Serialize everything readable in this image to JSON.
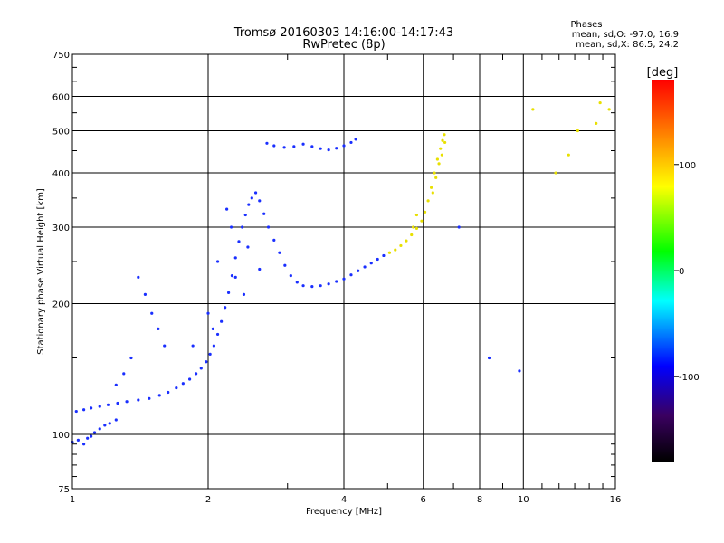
{
  "chart_data": {
    "type": "scatter",
    "title": "Tromsø 20160303 14:16:00-14:17:43",
    "subtitle": "RwPretec (8p)",
    "xlabel": "Frequency [MHz]",
    "ylabel": "Stationary phase Virtual Height [km]",
    "x_scale": "log",
    "y_scale": "log",
    "xlim": [
      1,
      16
    ],
    "ylim": [
      75,
      750
    ],
    "x_ticks": [
      1,
      2,
      4,
      6,
      8,
      10,
      16
    ],
    "x_tick_labels": [
      "1",
      "2",
      "4",
      "6",
      "8",
      "10",
      "16"
    ],
    "y_ticks": [
      75,
      100,
      200,
      300,
      400,
      500,
      600,
      750
    ],
    "y_tick_labels": [
      "75",
      "100",
      "200",
      "300",
      "400",
      "500",
      "600",
      "750"
    ],
    "grid": true,
    "stats": {
      "heading": "Phases",
      "line_o": "mean, sd,O: -97.0, 16.9",
      "line_x": "mean, sd,X:  86.5, 24.2"
    },
    "colorbar": {
      "label": "[deg]",
      "range": [
        -180,
        180
      ],
      "ticks": [
        100,
        0,
        -100
      ],
      "tick_labels": [
        "100",
        "0",
        "-100"
      ],
      "colormap": [
        "#000000",
        "#3a0060",
        "#0000ff",
        "#00ffff",
        "#00ff00",
        "#ffff00",
        "#ff0000"
      ]
    },
    "colors": {
      "o_mode": "#1a2fff",
      "x_mode": "#e8e000"
    },
    "series": [
      {
        "points": [
          [
            1.0,
            96
          ],
          [
            1.03,
            97
          ],
          [
            1.06,
            95
          ],
          [
            1.08,
            98
          ],
          [
            1.1,
            99
          ],
          [
            1.12,
            101
          ],
          [
            1.15,
            103
          ],
          [
            1.18,
            105
          ],
          [
            1.21,
            106
          ],
          [
            1.25,
            108
          ],
          [
            1.02,
            113
          ],
          [
            1.06,
            114
          ],
          [
            1.1,
            115
          ],
          [
            1.15,
            116
          ],
          [
            1.2,
            117
          ],
          [
            1.26,
            118
          ],
          [
            1.32,
            119
          ],
          [
            1.4,
            120
          ],
          [
            1.48,
            121
          ],
          [
            1.56,
            123
          ],
          [
            1.63,
            125
          ],
          [
            1.7,
            128
          ],
          [
            1.76,
            131
          ],
          [
            1.82,
            134
          ],
          [
            1.88,
            138
          ],
          [
            1.93,
            142
          ],
          [
            1.98,
            147
          ],
          [
            2.02,
            153
          ],
          [
            2.06,
            160
          ],
          [
            2.1,
            170
          ],
          [
            2.14,
            182
          ],
          [
            2.18,
            196
          ],
          [
            2.22,
            212
          ],
          [
            2.26,
            232
          ],
          [
            2.3,
            255
          ],
          [
            2.34,
            278
          ],
          [
            2.38,
            300
          ],
          [
            2.42,
            320
          ],
          [
            2.46,
            338
          ],
          [
            2.5,
            350
          ],
          [
            2.55,
            360
          ],
          [
            2.6,
            345
          ],
          [
            2.66,
            322
          ],
          [
            2.72,
            300
          ],
          [
            2.8,
            280
          ],
          [
            2.88,
            262
          ],
          [
            2.96,
            245
          ],
          [
            3.05,
            232
          ],
          [
            3.15,
            224
          ],
          [
            3.25,
            220
          ],
          [
            3.4,
            219
          ],
          [
            3.55,
            220
          ],
          [
            3.7,
            222
          ],
          [
            3.85,
            225
          ],
          [
            4.0,
            228
          ],
          [
            4.15,
            233
          ],
          [
            4.3,
            238
          ],
          [
            4.45,
            243
          ],
          [
            4.6,
            248
          ],
          [
            4.75,
            253
          ],
          [
            4.9,
            258
          ],
          [
            5.05,
            262
          ],
          [
            5.2,
            266
          ],
          [
            5.35,
            272
          ],
          [
            5.5,
            279
          ],
          [
            5.65,
            288
          ],
          [
            5.8,
            298
          ],
          [
            5.95,
            310
          ],
          [
            6.05,
            325
          ],
          [
            6.15,
            345
          ],
          [
            6.25,
            370
          ],
          [
            6.35,
            400
          ],
          [
            6.45,
            430
          ],
          [
            6.55,
            455
          ],
          [
            6.62,
            475
          ],
          [
            6.68,
            490
          ],
          [
            2.7,
            468
          ],
          [
            2.8,
            462
          ],
          [
            2.95,
            458
          ],
          [
            3.1,
            460
          ],
          [
            3.25,
            466
          ],
          [
            3.4,
            460
          ],
          [
            3.55,
            455
          ],
          [
            3.7,
            452
          ],
          [
            3.85,
            456
          ],
          [
            4.0,
            462
          ],
          [
            4.15,
            470
          ],
          [
            4.25,
            478
          ],
          [
            2.25,
            300
          ],
          [
            2.1,
            250
          ],
          [
            2.4,
            210
          ],
          [
            2.6,
            240
          ],
          [
            2.0,
            190
          ],
          [
            1.85,
            160
          ],
          [
            2.05,
            175
          ],
          [
            2.3,
            230
          ],
          [
            2.45,
            270
          ],
          [
            2.2,
            330
          ],
          [
            1.4,
            230
          ],
          [
            1.45,
            210
          ],
          [
            1.5,
            190
          ],
          [
            1.55,
            175
          ],
          [
            1.6,
            160
          ],
          [
            1.35,
            150
          ],
          [
            1.3,
            138
          ],
          [
            1.25,
            130
          ],
          [
            5.7,
            300
          ],
          [
            5.8,
            320
          ],
          [
            6.3,
            360
          ],
          [
            6.4,
            390
          ],
          [
            6.5,
            420
          ],
          [
            6.6,
            440
          ],
          [
            6.7,
            470
          ],
          [
            14.5,
            520
          ],
          [
            14.8,
            580
          ],
          [
            15.5,
            560
          ],
          [
            13.2,
            500
          ],
          [
            12.6,
            440
          ],
          [
            11.8,
            400
          ],
          [
            10.5,
            560
          ],
          [
            9.8,
            140
          ],
          [
            8.4,
            150
          ],
          [
            7.2,
            300
          ]
        ]
      }
    ]
  }
}
